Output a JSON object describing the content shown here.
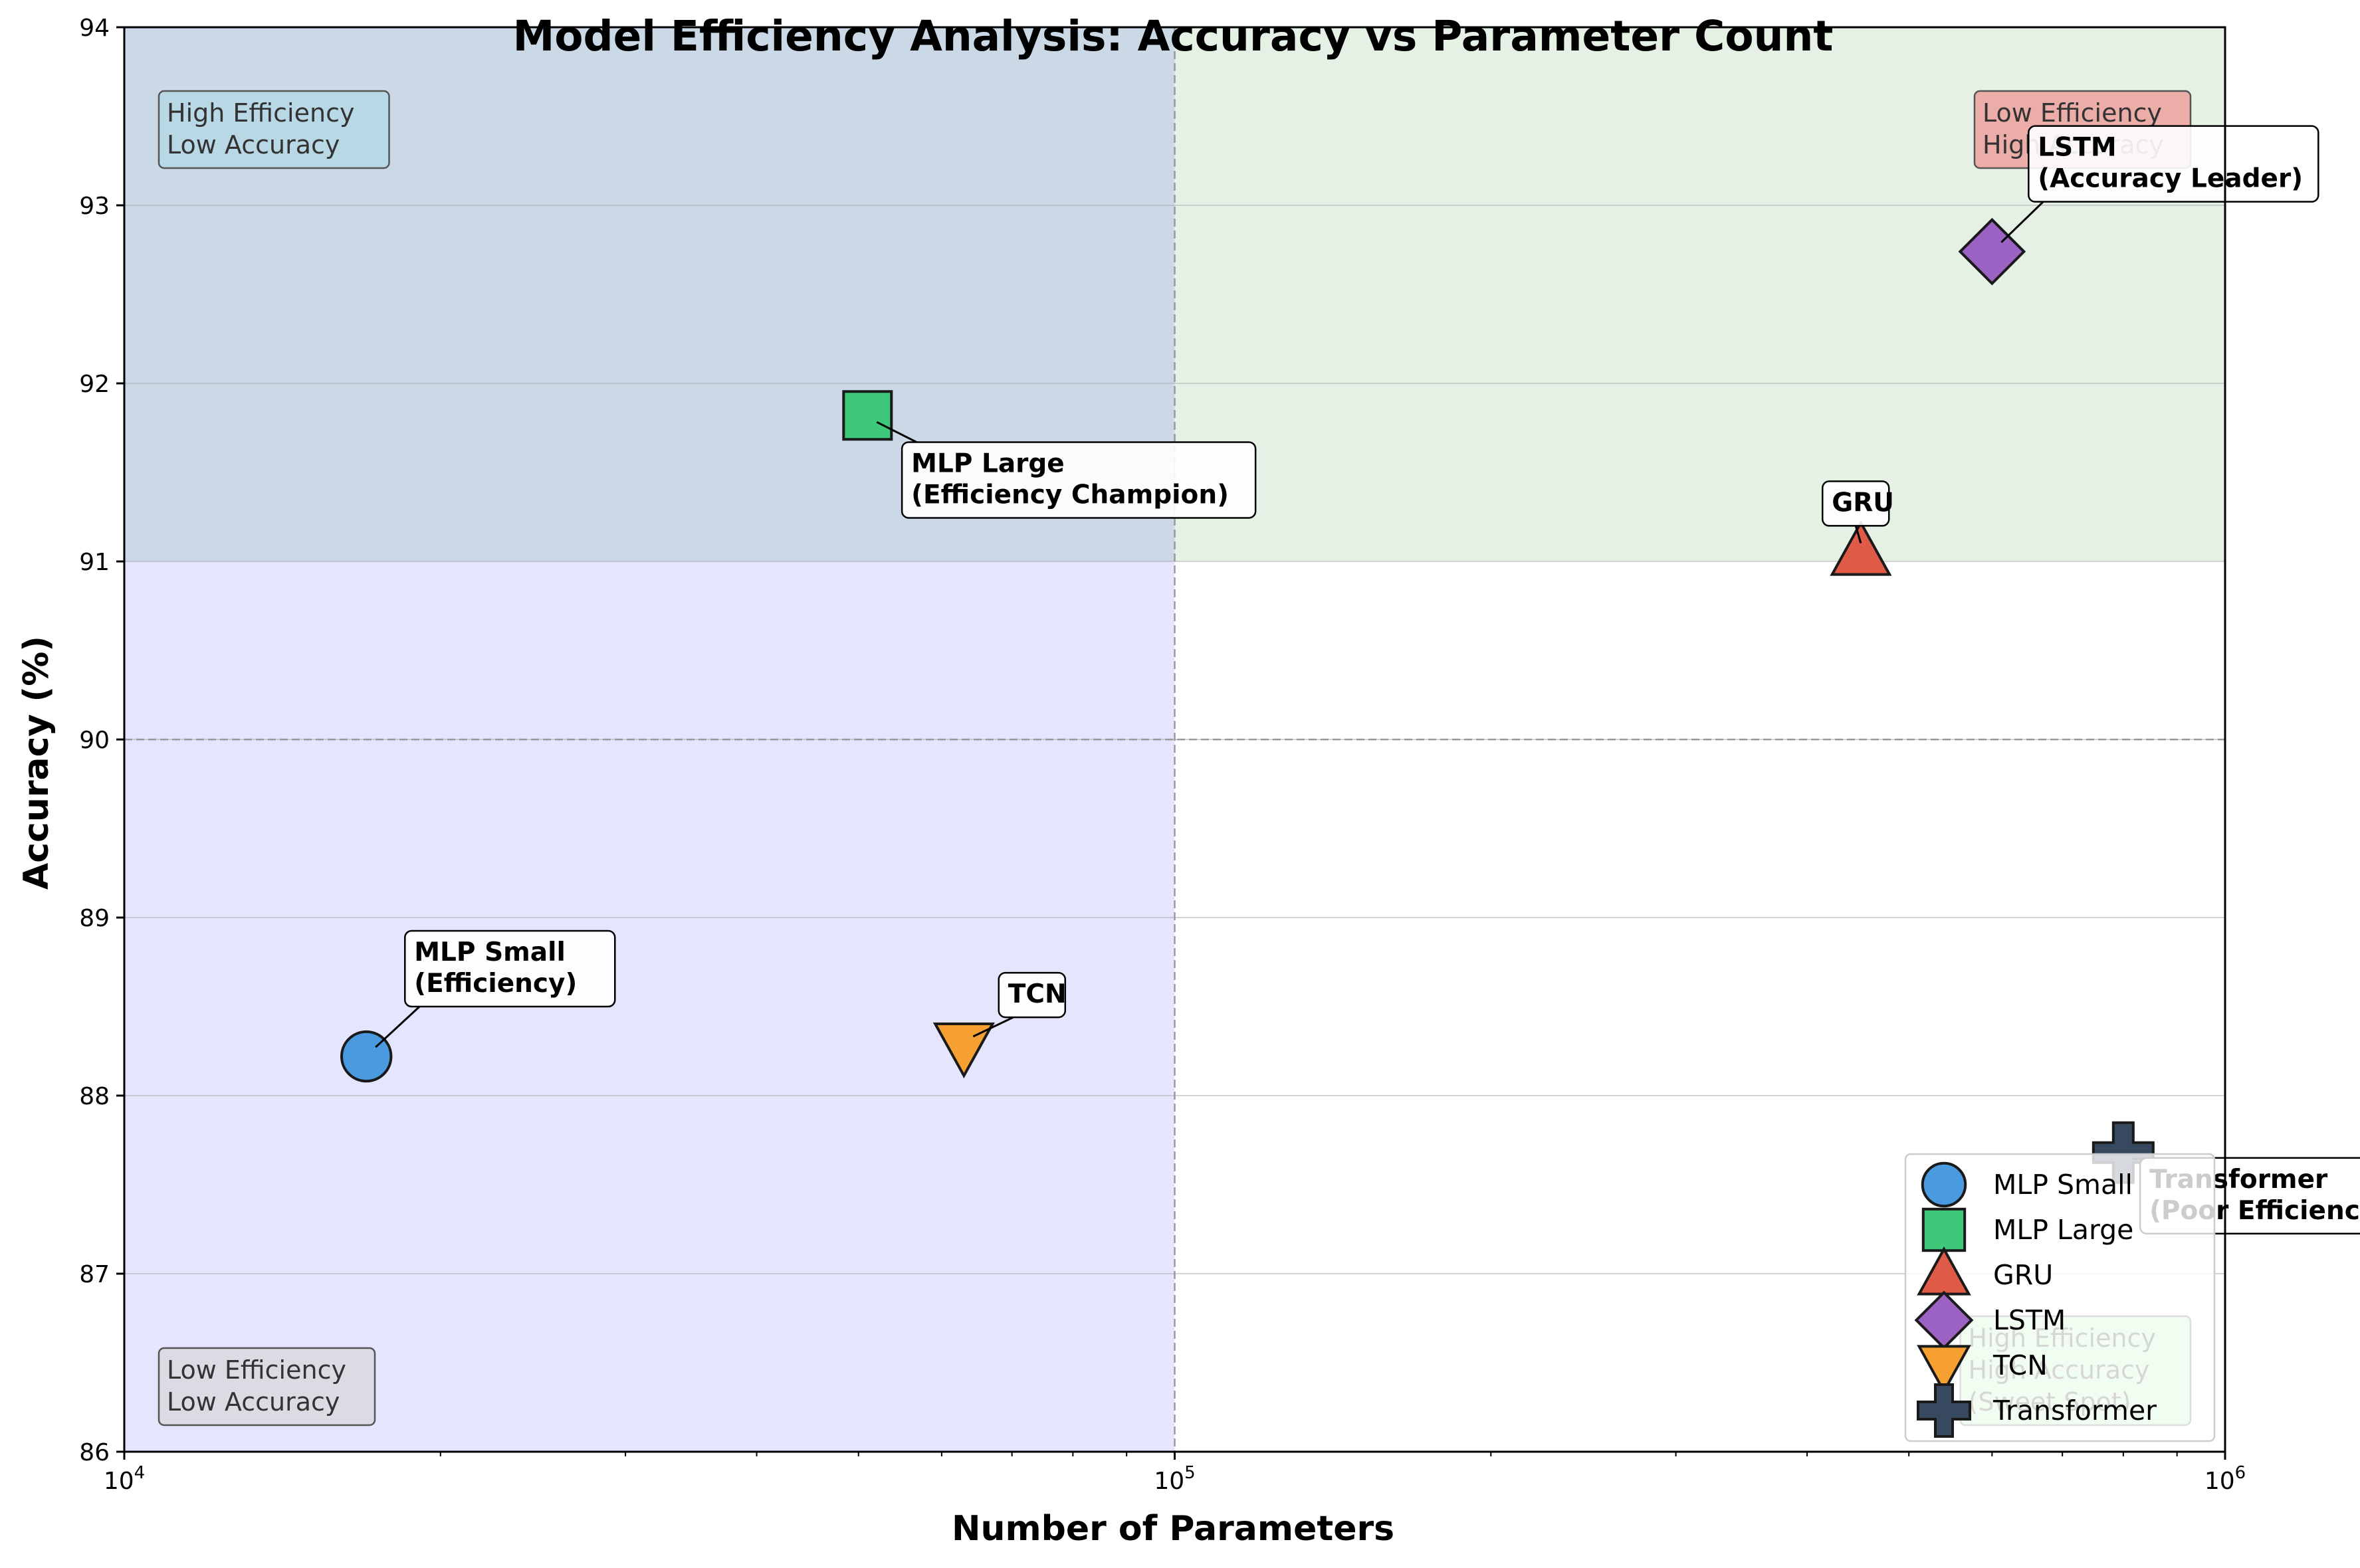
{
  "chart_data": {
    "type": "scatter",
    "title": "Model Efficiency Analysis: Accuracy vs Parameter Count",
    "xlabel": "Number of Parameters",
    "ylabel": "Accuracy (%)",
    "xscale": "log",
    "xlim": [
      10000,
      1000000
    ],
    "ylim": [
      86,
      94
    ],
    "x_ticks": [
      {
        "value": 10000,
        "base": "10",
        "exp": "4"
      },
      {
        "value": 100000,
        "base": "10",
        "exp": "5"
      },
      {
        "value": 1000000,
        "base": "10",
        "exp": "6"
      }
    ],
    "y_ticks": [
      "86",
      "87",
      "88",
      "89",
      "90",
      "91",
      "92",
      "93",
      "94"
    ],
    "grid": "horizontal",
    "reference_lines": {
      "x": 100000,
      "y": 90
    },
    "regions": [
      {
        "x": [
          10000,
          100000
        ],
        "y": [
          91,
          94
        ],
        "color": "#cbd8e6"
      },
      {
        "x": [
          100000,
          1000000
        ],
        "y": [
          91,
          94
        ],
        "color": "#e6f1e5"
      },
      {
        "x": [
          10000,
          100000
        ],
        "y": [
          86,
          91
        ],
        "color": "#e5e5fd"
      }
    ],
    "quadrant_labels": [
      {
        "lines": [
          "High Efficiency",
          "Low Accuracy"
        ],
        "corner": "top-left",
        "fill": "#add8e6"
      },
      {
        "lines": [
          "Low Efficiency",
          "High Accuracy"
        ],
        "corner": "top-right",
        "fill": "#f08080"
      },
      {
        "lines": [
          "Low Efficiency",
          "Low Accuracy"
        ],
        "corner": "bottom-left",
        "fill": "#d3d3d3"
      },
      {
        "lines": [
          "High Efficiency",
          "High Accuracy",
          "(Sweet Spot)"
        ],
        "corner": "bottom-right",
        "fill": "#90ee90"
      }
    ],
    "series": [
      {
        "name": "MLP Small",
        "x": 17000,
        "y": 88.22,
        "marker": "circle",
        "color": "#4a9ae0",
        "annotation": [
          "MLP Small",
          "(Efficiency)"
        ],
        "label_at": [
          18500,
          88.5
        ],
        "label_anchor": "bl"
      },
      {
        "name": "MLP Large",
        "x": 51000,
        "y": 91.82,
        "marker": "square",
        "color": "#3ec97a",
        "annotation": [
          "MLP Large",
          "(Efficiency Champion)"
        ],
        "label_at": [
          55000,
          91.67
        ],
        "label_anchor": "tl"
      },
      {
        "name": "GRU",
        "x": 450000,
        "y": 91.05,
        "marker": "triangle-up",
        "color": "#e05a48",
        "annotation": [
          "GRU"
        ],
        "label_at": [
          445000,
          91.2
        ],
        "label_anchor": "bc"
      },
      {
        "name": "LSTM",
        "x": 600000,
        "y": 92.74,
        "marker": "diamond",
        "color": "#9b62c4",
        "annotation": [
          "LSTM",
          "(Accuracy Leader)"
        ],
        "label_at": [
          650000,
          93.02
        ],
        "label_anchor": "bl"
      },
      {
        "name": "TCN",
        "x": 63000,
        "y": 88.28,
        "marker": "triangle-down",
        "color": "#f5a031",
        "annotation": [
          "TCN"
        ],
        "label_at": [
          68000,
          88.44
        ],
        "label_anchor": "bl"
      },
      {
        "name": "Transformer",
        "x": 800000,
        "y": 87.68,
        "marker": "plus",
        "color": "#36495e",
        "annotation": [
          "Transformer",
          "(Poor Efficiency)"
        ],
        "label_at": [
          830000,
          87.65
        ],
        "label_anchor": "tl"
      }
    ],
    "legend": "lower-right"
  }
}
